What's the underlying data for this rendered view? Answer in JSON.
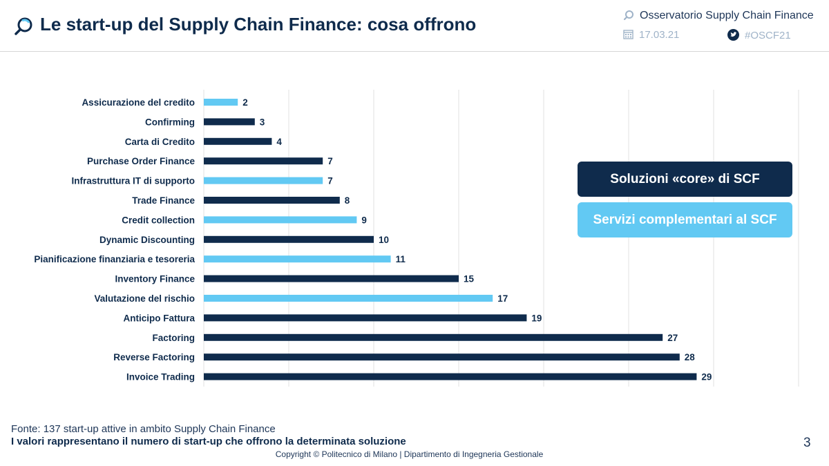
{
  "header": {
    "title": "Le start-up del Supply Chain Finance: cosa offrono",
    "observatory": "Osservatorio Supply Chain Finance",
    "date": "17.03.21",
    "hashtag": "#OSCF21",
    "icons": [
      "magnifier-logo-icon",
      "calendar-icon",
      "twitter-bird-icon"
    ]
  },
  "legend": {
    "core_label": "Soluzioni «core» di SCF",
    "complementary_label": "Servizi complementari al SCF"
  },
  "colors": {
    "core": "#0f2b4c",
    "complementary": "#62c9f3",
    "grid": "#e2e2e2"
  },
  "chart_data": {
    "type": "bar",
    "orientation": "horizontal",
    "categories": [
      "Assicurazione del credito",
      "Confirming",
      "Carta di Credito",
      "Purchase Order Finance",
      "Infrastruttura IT di supporto",
      "Trade Finance",
      "Credit collection",
      "Dynamic Discounting",
      "Pianificazione finanziaria e tesoreria",
      "Inventory Finance",
      "Valutazione del rischio",
      "Anticipo Fattura",
      "Factoring",
      "Reverse Factoring",
      "Invoice Trading"
    ],
    "values": [
      2,
      3,
      4,
      7,
      7,
      8,
      9,
      10,
      11,
      15,
      17,
      19,
      27,
      28,
      29
    ],
    "groups": [
      "complementary",
      "core",
      "core",
      "core",
      "complementary",
      "core",
      "complementary",
      "core",
      "complementary",
      "core",
      "complementary",
      "core",
      "core",
      "core",
      "core"
    ],
    "xlim": [
      0,
      35
    ],
    "grid": true,
    "legend_position": "right"
  },
  "footer": {
    "source": "Fonte: 137 start-up attive in ambito Supply Chain Finance",
    "note": "I valori rappresentano il numero di start-up che offrono la determinata soluzione",
    "copyright": "Copyright © Politecnico di Milano | Dipartimento di Ingegneria Gestionale",
    "page_number": "3"
  }
}
